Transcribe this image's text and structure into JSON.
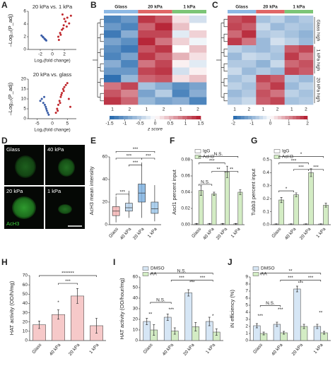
{
  "figure": {
    "letters": [
      "A",
      "B",
      "C",
      "D",
      "E",
      "F",
      "G",
      "H",
      "I",
      "J"
    ],
    "micrographs": [
      "Glass",
      "40 kPa",
      "20 kPa",
      "1 kPa"
    ],
    "stain": "AcH3"
  },
  "chart_data": [
    {
      "type": "scatter",
      "title": "20 kPa vs. 1 kPa",
      "x_label": "Log₂(fold change)",
      "y_label": "–Log₁₀(P_adj)",
      "xlim": [
        -4,
        4
      ],
      "ylim": [
        0,
        6
      ],
      "xticks": [
        -2,
        0,
        2
      ],
      "yticks": [
        0,
        2,
        4,
        6
      ],
      "series": [
        {
          "color": "#3b5ea8",
          "x": [
            -1.2,
            -1.5,
            -1.0,
            -1.8,
            -1.3,
            -1.1,
            -1.6
          ],
          "y": [
            1.6,
            1.9,
            1.4,
            2.2,
            1.7,
            1.5,
            2.0
          ]
        },
        {
          "color": "#c0282d",
          "x": [
            1.0,
            1.3,
            1.6,
            1.9,
            2.2,
            2.5,
            1.4,
            1.8,
            2.8,
            3.1,
            1.1,
            2.0,
            2.4,
            1.7
          ],
          "y": [
            2.0,
            2.6,
            3.1,
            3.8,
            4.4,
            5.0,
            2.3,
            3.3,
            4.1,
            5.3,
            1.5,
            4.8,
            3.6,
            5.5
          ]
        }
      ]
    },
    {
      "type": "scatter",
      "title": "20 kPa vs. glass",
      "x_label": "Log₂(fold change)",
      "y_label": "–Log₁₀(P_adj)",
      "xlim": [
        -8,
        8
      ],
      "ylim": [
        0,
        20
      ],
      "xticks": [
        -5,
        0,
        5
      ],
      "yticks": [
        0,
        5,
        10,
        15,
        20
      ],
      "series": [
        {
          "color": "#3b5ea8",
          "x": [
            -1.5,
            -2.0,
            -2.5,
            -3.0,
            -1.2,
            -3.5,
            -2.2,
            -1.8,
            -4.0,
            -2.7
          ],
          "y": [
            3,
            5,
            7,
            8,
            2,
            10,
            6,
            4,
            9,
            11
          ]
        },
        {
          "color": "#c0282d",
          "x": [
            1.2,
            1.6,
            2.0,
            2.4,
            2.8,
            3.2,
            3.6,
            4.0,
            4.5,
            5.0,
            1.8,
            2.6,
            3.0,
            3.8,
            5.5,
            6.0
          ],
          "y": [
            3,
            5,
            7,
            9,
            11,
            13,
            15,
            16,
            17,
            18,
            4,
            8,
            12,
            14,
            10,
            6
          ]
        }
      ]
    },
    {
      "type": "heatmap",
      "groups": [
        "Glass",
        "20 kPa",
        "1 kPa"
      ],
      "group_colors": [
        "#8db9e4",
        "#e06666",
        "#7cc576"
      ],
      "replicates": [
        "1",
        "2",
        "1",
        "2",
        "1",
        "2"
      ],
      "clim": [
        -1.5,
        1.5
      ],
      "cticks": [
        -1.5,
        -1,
        -0.5,
        0,
        0.5,
        1,
        1.5
      ],
      "colorbar_label": "z score",
      "matrix": [
        [
          -1.2,
          -1.0,
          1.3,
          1.1,
          0.2,
          -0.3
        ],
        [
          -1.0,
          -1.2,
          1.0,
          1.4,
          0.4,
          0.0
        ],
        [
          -1.3,
          -0.8,
          1.2,
          1.2,
          -0.2,
          0.3
        ],
        [
          -0.9,
          -1.1,
          1.4,
          0.9,
          0.3,
          -0.1
        ],
        [
          -1.1,
          -1.3,
          1.1,
          1.3,
          0.0,
          0.4
        ],
        [
          -1.2,
          -0.9,
          1.3,
          1.0,
          0.5,
          0.2
        ],
        [
          -0.8,
          -1.2,
          0.9,
          1.2,
          0.1,
          -0.2
        ],
        [
          -1.0,
          -1.0,
          1.2,
          1.3,
          -0.3,
          0.1
        ],
        [
          -1.4,
          -0.7,
          1.0,
          1.1,
          0.2,
          0.4
        ],
        [
          0.9,
          1.2,
          -0.6,
          -0.8,
          -1.1,
          -0.9
        ],
        [
          1.1,
          0.8,
          -0.9,
          -0.5,
          -1.2,
          -0.8
        ],
        [
          1.3,
          1.0,
          -0.7,
          -0.9,
          -0.8,
          -1.2
        ]
      ]
    },
    {
      "type": "heatmap",
      "groups": [
        "Glass",
        "20 kPa",
        "1 kPa"
      ],
      "group_colors": [
        "#8db9e4",
        "#e06666",
        "#7cc576"
      ],
      "replicates": [
        "1",
        "2",
        "1",
        "2",
        "1",
        "2"
      ],
      "clim": [
        -2,
        2
      ],
      "cticks": [
        -2,
        -1,
        0,
        1,
        2
      ],
      "side_labels": [
        "Glass high",
        "1 kPa high",
        "20 kPa high"
      ],
      "matrix": [
        [
          1.5,
          1.7,
          -0.8,
          -0.6,
          -0.9,
          -0.7
        ],
        [
          1.6,
          1.4,
          -0.5,
          -0.9,
          -0.7,
          -0.8
        ],
        [
          1.3,
          1.8,
          -0.7,
          -0.6,
          -0.8,
          -1.0
        ],
        [
          1.7,
          1.2,
          -0.9,
          -0.4,
          -0.6,
          -0.9
        ],
        [
          -0.6,
          -0.8,
          -0.9,
          -0.7,
          1.4,
          1.6
        ],
        [
          -0.9,
          -0.5,
          -0.6,
          -0.8,
          1.7,
          1.2
        ],
        [
          -0.7,
          -0.7,
          -1.0,
          -0.5,
          1.3,
          1.5
        ],
        [
          -0.5,
          -0.9,
          -0.7,
          -0.9,
          1.6,
          1.4
        ],
        [
          -0.8,
          -0.6,
          1.6,
          1.4,
          -0.7,
          -0.9
        ],
        [
          -0.6,
          -0.8,
          1.3,
          1.7,
          -0.9,
          -0.6
        ],
        [
          -0.9,
          -0.7,
          1.5,
          1.2,
          -0.6,
          -0.8
        ],
        [
          -0.7,
          -0.5,
          1.4,
          1.6,
          -0.8,
          -0.7
        ]
      ]
    },
    {
      "type": "box",
      "y_label": "AcH3 mean intensity",
      "categories": [
        "Glass",
        "40 kPa",
        "20 kPa",
        "1 kPa"
      ],
      "colors": [
        "#f4b6b6",
        "#b9d4ec",
        "#7fb2e0",
        "#9fc8ea"
      ],
      "min": [
        2,
        6,
        6,
        3
      ],
      "q1": [
        8,
        12,
        20,
        10
      ],
      "median": [
        12,
        15,
        28,
        14
      ],
      "q3": [
        16,
        19,
        36,
        20
      ],
      "max": [
        25,
        30,
        55,
        35
      ],
      "ylim": [
        0,
        60
      ],
      "yticks": [
        0,
        20,
        40,
        60
      ],
      "annotations": [
        "***",
        "***",
        "***",
        "***",
        "***"
      ]
    },
    {
      "type": "bar",
      "y_label": "Ascl1 percent input",
      "categories": [
        "Glass",
        "40 kPa",
        "20 kPa",
        "1 kPa"
      ],
      "legend": "upper left",
      "series": [
        {
          "name": "IgG",
          "color": "#ffffff",
          "values": [
            0.001,
            0.001,
            0.001,
            0.001
          ],
          "errors": [
            0.0005,
            0.0005,
            0.0005,
            0.0005
          ]
        },
        {
          "name": "AcH3",
          "color": "#d3ecc4",
          "values": [
            0.042,
            0.038,
            0.065,
            0.04
          ],
          "errors": [
            0.006,
            0.002,
            0.007,
            0.003
          ]
        }
      ],
      "ylim": [
        0,
        0.08
      ],
      "yticks": [
        {
          "value": 0,
          "label": "0.00"
        },
        0.02,
        0.04,
        0.06,
        {
          "value": 0.08,
          "label": "0.08"
        }
      ],
      "annotations": [
        "N.S.",
        "**",
        "**",
        "***",
        "N.S."
      ]
    },
    {
      "type": "bar",
      "y_label": "Tubb3 percent input",
      "categories": [
        "Glass",
        "40 kPa",
        "20 kPa",
        "1 kPa"
      ],
      "legend": "upper left",
      "series": [
        {
          "name": "IgG",
          "color": "#ffffff",
          "values": [
            0.005,
            0.005,
            0.005,
            0.005
          ],
          "errors": [
            0.002,
            0.002,
            0.002,
            0.002
          ]
        },
        {
          "name": "AcH3",
          "color": "#d3ecc4",
          "values": [
            0.19,
            0.23,
            0.4,
            0.15
          ],
          "errors": [
            0.02,
            0.015,
            0.03,
            0.015
          ]
        }
      ],
      "ylim": [
        0,
        0.5
      ],
      "yticks": [
        {
          "value": 0,
          "label": "0.0"
        },
        0.1,
        0.2,
        0.3,
        0.4,
        0.5
      ],
      "annotations": [
        "*",
        "***",
        "***",
        "***",
        "*"
      ]
    },
    {
      "type": "bar",
      "y_label": "HAT activity (OD/h/mg)",
      "categories": [
        "Glass",
        "40 kPa",
        "20 kPa",
        "1 kPa"
      ],
      "color": "#f6c9c9",
      "values": [
        17,
        28,
        48,
        16
      ],
      "errors": [
        4,
        5,
        8,
        8
      ],
      "ylim": [
        0,
        70
      ],
      "yticks": [
        0,
        10,
        20,
        30,
        40,
        50,
        60,
        70
      ],
      "annotations": [
        "*",
        "***",
        "*******"
      ]
    },
    {
      "type": "bar",
      "y_label": "HAT activity (OD/hour/mg)",
      "categories": [
        "Glass",
        "40 kPa",
        "20 kPa",
        "1 kPa"
      ],
      "legend": "upper left",
      "series": [
        {
          "name": "DMSO",
          "color": "#d6e6f5",
          "values": [
            18,
            22,
            45,
            18
          ],
          "errors": [
            3,
            3,
            3,
            4
          ]
        },
        {
          "name": "AA",
          "color": "#d3ecc4",
          "values": [
            10,
            9,
            13,
            8
          ],
          "errors": [
            5,
            3,
            4,
            3
          ]
        }
      ],
      "ylim": [
        0,
        60
      ],
      "yticks": [
        0,
        10,
        20,
        30,
        40,
        50,
        60
      ],
      "annotations": [
        "**",
        "***",
        "***",
        "*",
        "N.S.",
        "***",
        "***",
        "N.S."
      ]
    },
    {
      "type": "bar",
      "y_label": "iN efficiency (%)",
      "categories": [
        "Glass",
        "40 kPa",
        "20 kPa",
        "1 kPa"
      ],
      "legend": "upper left",
      "series": [
        {
          "name": "DMSO",
          "color": "#d6e6f5",
          "values": [
            2.1,
            2.3,
            7.3,
            2.0
          ],
          "errors": [
            0.3,
            0.3,
            0.4,
            0.3
          ]
        },
        {
          "name": "AA",
          "color": "#d3ecc4",
          "values": [
            1.0,
            1.1,
            2.0,
            1.1
          ],
          "errors": [
            0.2,
            0.2,
            0.3,
            0.2
          ]
        }
      ],
      "ylim": [
        0,
        9
      ],
      "yticks": [
        0,
        1,
        2,
        3,
        4,
        5,
        6,
        7,
        8,
        9
      ],
      "annotations": [
        "***",
        "***",
        "***",
        "**",
        "N.S.",
        "***",
        "***",
        "**"
      ]
    }
  ]
}
